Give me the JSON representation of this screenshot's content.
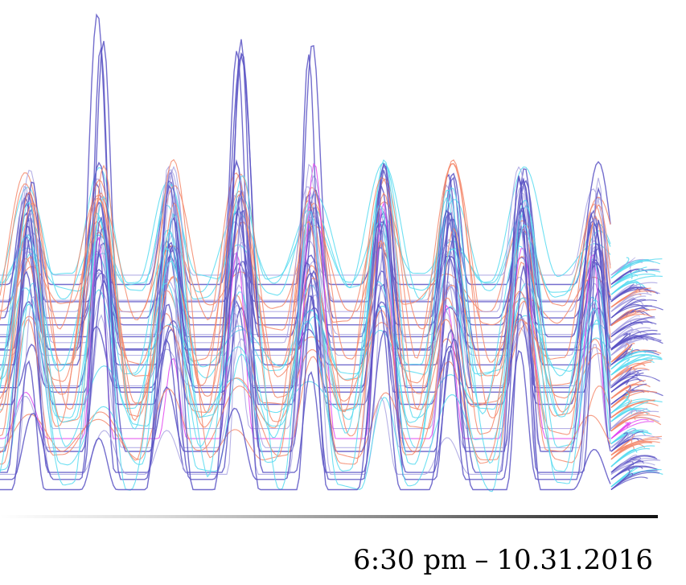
{
  "timestamp": {
    "time": "6:30 pm",
    "separator": "–",
    "date": "10.31.2016"
  },
  "colors": {
    "purple": "#5b54c4",
    "lavender": "#a9a3e2",
    "cyan": "#56dbf0",
    "salmon": "#f4876a",
    "magenta": "#e244f0",
    "background": "#ffffff",
    "timeline_dark": "#111111"
  },
  "visualization": {
    "kind": "stacked-wave-traces",
    "trace_count": 46,
    "peak_count": 9,
    "flourish_at_end": true
  }
}
